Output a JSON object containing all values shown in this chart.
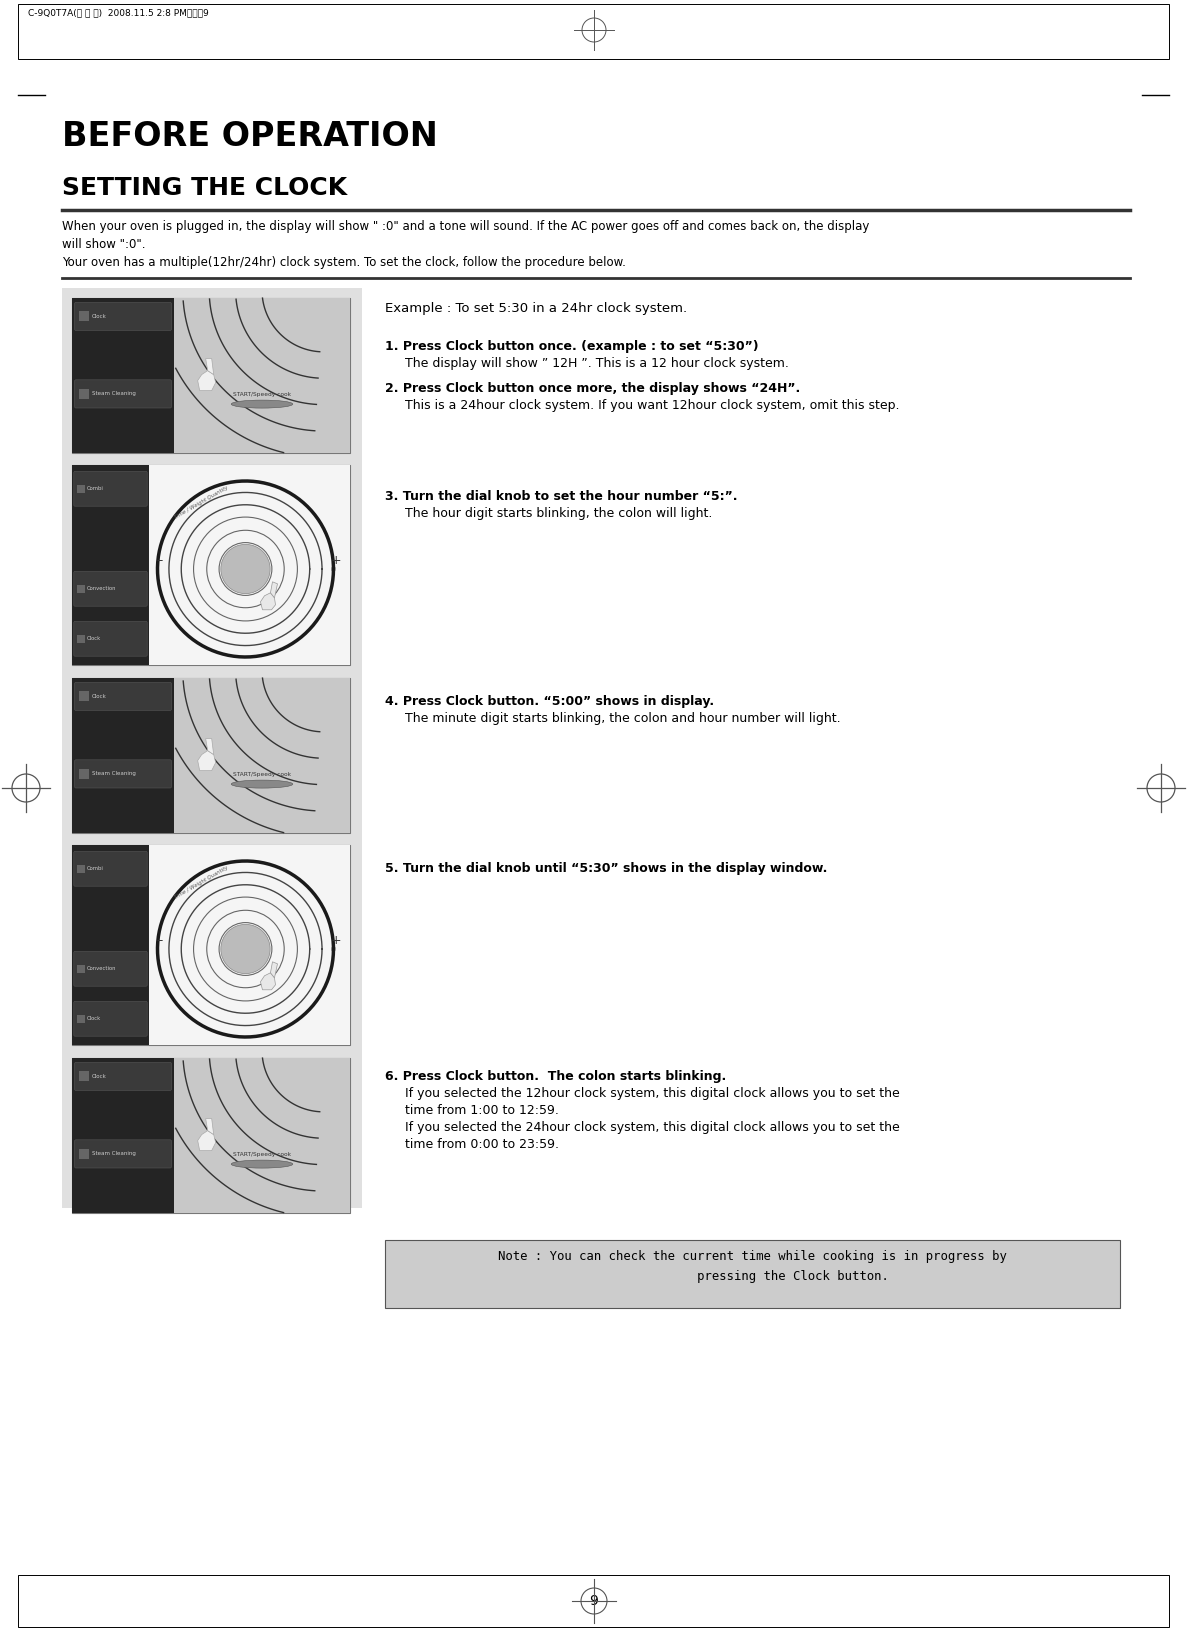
{
  "page_number": "9",
  "header_text": "C-9Q0T7A(영기분)  2008.11.5 2:8 PM페이지9",
  "main_title": "BEFORE OPERATION",
  "section_title": "SETTING THE CLOCK",
  "intro_text1": "When your oven is plugged in, the display will show \" :0\" and a tone will sound. If the AC power goes off and comes back on, the display\nwill show \":0\".",
  "intro_text2": "Your oven has a multiple(12hr/24hr) clock system. To set the clock, follow the procedure below.",
  "example_title": "Example : To set 5:30 in a 24hr clock system.",
  "step1_bold": "1. Press Clock button once. (example : to set “5:30”)",
  "step1_normal": "     The display will show ” 12H ”. This is a 12 hour clock system.",
  "step2_bold": "2. Press Clock button once more, the display shows “24H”.",
  "step2_normal": "     This is a 24hour clock system. If you want 12hour clock system, omit this step.",
  "step3_bold": "3. Turn the dial knob to set the hour number “5:”.",
  "step3_normal": "     The hour digit starts blinking, the colon will light.",
  "step4_bold": "4. Press Clock button. “5:00” shows in display.",
  "step4_normal": "     The minute digit starts blinking, the colon and hour number will light.",
  "step5_bold": "5. Turn the dial knob until “5:30” shows in the display window.",
  "step6_bold": "6. Press Clock button.  The colon starts blinking.",
  "step6_normal1": "     If you selected the 12hour clock system, this digital clock allows you to set the",
  "step6_normal2": "     time from 1:00 to 12:59.",
  "step6_normal3": "     If you selected the 24hour clock system, this digital clock allows you to set the",
  "step6_normal4": "     time from 0:00 to 23:59.",
  "note_line1": "Note : You can check the current time while cooking is in progress by",
  "note_line2": "           pressing the Clock button.",
  "bg_color": "#ffffff",
  "gray_panel_color": "#e0e0e0",
  "note_bg": "#cccccc",
  "image_dark_bg": "#1c1c1c",
  "image_btn_bg": "#2e2e2e",
  "image_right_bg": "#f0f0f0"
}
